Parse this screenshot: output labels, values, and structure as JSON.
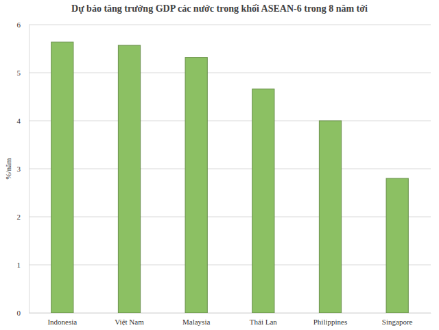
{
  "chart_data": {
    "type": "bar",
    "title": "Dự báo tăng trưởng GDP các nước trong khối ASEAN-6 trong 8 năm tới",
    "y_label": "%/năm",
    "categories": [
      "Indonesia",
      "Việt Nam",
      "Malaysia",
      "Thái Lan",
      "Philippines",
      "Singapore"
    ],
    "values": [
      5.64,
      5.57,
      5.32,
      4.66,
      4.0,
      2.8
    ],
    "color": "#8cc063",
    "ylim": [
      0,
      6
    ],
    "yticks": [
      0,
      1,
      2,
      3,
      4,
      5,
      6
    ],
    "grid": true
  }
}
